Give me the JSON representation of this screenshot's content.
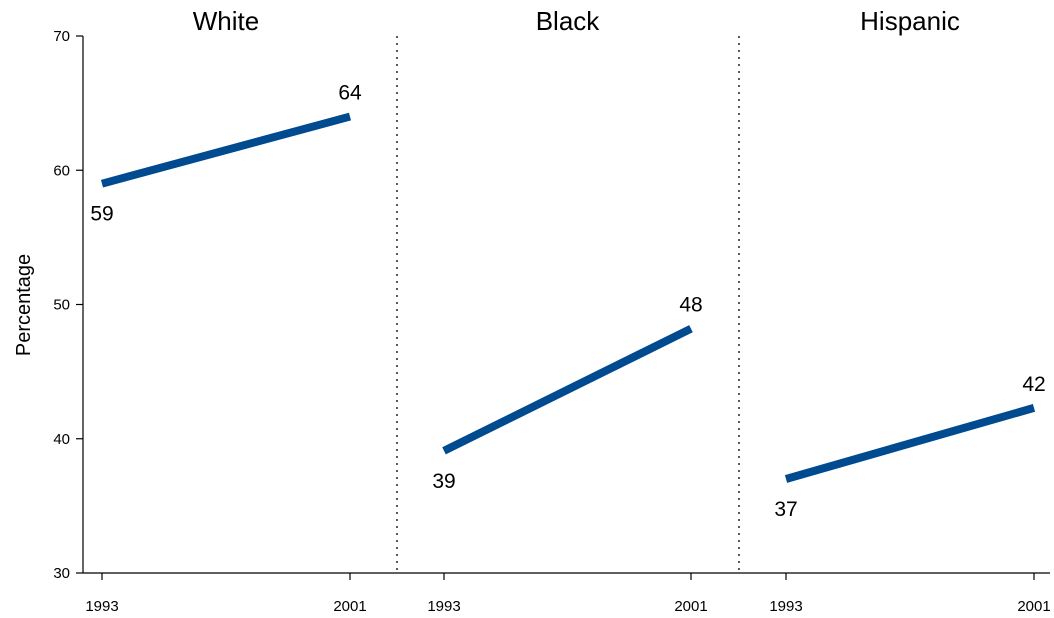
{
  "chart_data": {
    "type": "line",
    "ylabel": "Percentage",
    "ylim": [
      30,
      70
    ],
    "yticks": [
      30,
      40,
      50,
      60,
      70
    ],
    "line_color": "#004a8f",
    "panels": [
      {
        "title": "White",
        "x": [
          "1993",
          "2001"
        ],
        "values": [
          59,
          64
        ]
      },
      {
        "title": "Black",
        "x": [
          "1993",
          "2001"
        ],
        "values": [
          39,
          48
        ]
      },
      {
        "title": "Hispanic",
        "x": [
          "1993",
          "2001"
        ],
        "values": [
          37,
          42
        ]
      }
    ],
    "true_values": [
      [
        59.0,
        64.0
      ],
      [
        39.1,
        48.2
      ],
      [
        37.0,
        42.3
      ]
    ]
  }
}
